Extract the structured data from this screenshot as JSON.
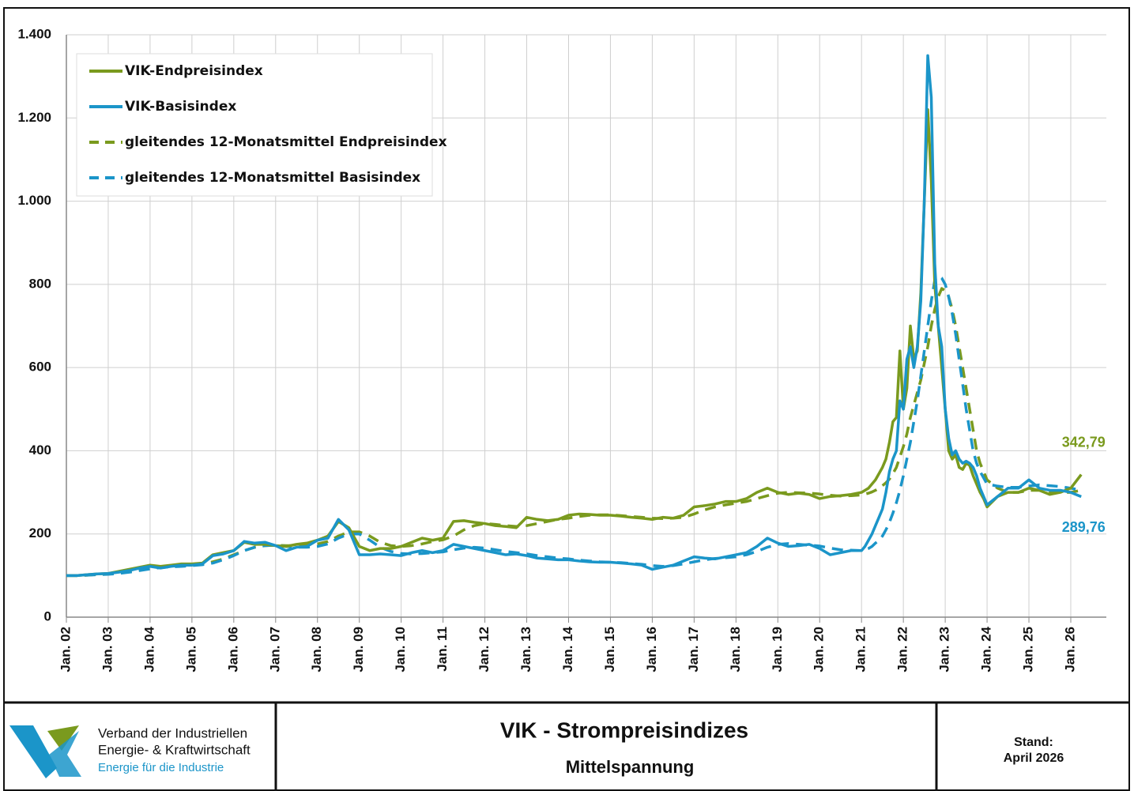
{
  "chart_data": {
    "type": "line",
    "title": "VIK - Strompreisindizes",
    "subtitle": "Mittelspannung",
    "organization": [
      "Verband der Industriellen",
      "Energie- & Kraftwirtschaft",
      "Energie für die Industrie"
    ],
    "stand_label": "Stand:",
    "stand_date": "April 2026",
    "xlim": [
      2002,
      2026.85
    ],
    "ylim": [
      0,
      1400
    ],
    "yticks": [
      0,
      200,
      400,
      600,
      800,
      {
        "value": 1000,
        "label": "1.000"
      },
      {
        "value": 1200,
        "label": "1.200"
      },
      {
        "value": 1400,
        "label": "1.400"
      }
    ],
    "xticks": [
      {
        "value": 2002,
        "label": "Jan. 02"
      },
      {
        "value": 2003,
        "label": "Jan. 03"
      },
      {
        "value": 2004,
        "label": "Jan. 04"
      },
      {
        "value": 2005,
        "label": "Jan. 05"
      },
      {
        "value": 2006,
        "label": "Jan. 06"
      },
      {
        "value": 2007,
        "label": "Jan. 07"
      },
      {
        "value": 2008,
        "label": "Jan. 08"
      },
      {
        "value": 2009,
        "label": "Jan. 09"
      },
      {
        "value": 2010,
        "label": "Jan. 10"
      },
      {
        "value": 2011,
        "label": "Jan. 11"
      },
      {
        "value": 2012,
        "label": "Jan. 12"
      },
      {
        "value": 2013,
        "label": "Jan. 13"
      },
      {
        "value": 2014,
        "label": "Jan. 14"
      },
      {
        "value": 2015,
        "label": "Jan. 15"
      },
      {
        "value": 2016,
        "label": "Jan. 16"
      },
      {
        "value": 2017,
        "label": "Jan. 17"
      },
      {
        "value": 2018,
        "label": "Jan. 18"
      },
      {
        "value": 2019,
        "label": "Jan. 19"
      },
      {
        "value": 2020,
        "label": "Jan. 20"
      },
      {
        "value": 2021,
        "label": "Jan. 21"
      },
      {
        "value": 2022,
        "label": "Jan. 22"
      },
      {
        "value": 2023,
        "label": "Jan. 23"
      },
      {
        "value": 2024,
        "label": "Jan. 24"
      },
      {
        "value": 2025,
        "label": "Jan. 25"
      },
      {
        "value": 2026,
        "label": "Jan. 26"
      }
    ],
    "grid": true,
    "legend": "upper left",
    "x": [
      2002,
      2002.25,
      2002.5,
      2002.75,
      2003,
      2003.25,
      2003.5,
      2003.75,
      2004,
      2004.25,
      2004.5,
      2004.75,
      2005,
      2005.25,
      2005.5,
      2005.75,
      2006,
      2006.25,
      2006.5,
      2006.75,
      2007,
      2007.25,
      2007.5,
      2007.75,
      2008,
      2008.25,
      2008.5,
      2008.75,
      2009,
      2009.25,
      2009.5,
      2009.75,
      2010,
      2010.25,
      2010.5,
      2010.75,
      2011,
      2011.25,
      2011.5,
      2011.75,
      2012,
      2012.25,
      2012.5,
      2012.75,
      2013,
      2013.25,
      2013.5,
      2013.75,
      2014,
      2014.25,
      2014.5,
      2014.75,
      2015,
      2015.25,
      2015.5,
      2015.75,
      2016,
      2016.25,
      2016.5,
      2016.75,
      2017,
      2017.25,
      2017.5,
      2017.75,
      2018,
      2018.25,
      2018.5,
      2018.75,
      2019,
      2019.25,
      2019.5,
      2019.75,
      2020,
      2020.25,
      2020.5,
      2020.75,
      2021,
      2021.083,
      2021.167,
      2021.25,
      2021.333,
      2021.417,
      2021.5,
      2021.583,
      2021.667,
      2021.75,
      2021.833,
      2021.917,
      2022,
      2022.083,
      2022.167,
      2022.25,
      2022.333,
      2022.417,
      2022.5,
      2022.583,
      2022.667,
      2022.75,
      2022.833,
      2022.917,
      2023,
      2023.083,
      2023.167,
      2023.25,
      2023.333,
      2023.417,
      2023.5,
      2023.583,
      2023.667,
      2023.75,
      2023.833,
      2023.917,
      2024,
      2024.25,
      2024.5,
      2024.75,
      2025,
      2025.25,
      2025.5,
      2025.75,
      2026,
      2026.25
    ],
    "series": [
      {
        "name": "VIK-Endpreisindex",
        "color": "#7a9a1e",
        "dash": false,
        "values": [
          100,
          100,
          102,
          104,
          105,
          110,
          115,
          120,
          125,
          122,
          125,
          128,
          128,
          130,
          150,
          155,
          160,
          180,
          175,
          175,
          172,
          170,
          175,
          178,
          185,
          195,
          230,
          215,
          170,
          160,
          165,
          165,
          170,
          180,
          190,
          185,
          190,
          230,
          232,
          228,
          225,
          220,
          218,
          215,
          240,
          235,
          232,
          235,
          245,
          248,
          247,
          245,
          245,
          243,
          240,
          238,
          235,
          240,
          238,
          245,
          265,
          268,
          272,
          278,
          278,
          285,
          300,
          310,
          300,
          295,
          298,
          295,
          285,
          290,
          292,
          295,
          300,
          305,
          310,
          320,
          330,
          345,
          360,
          380,
          420,
          470,
          480,
          640,
          500,
          550,
          700,
          620,
          640,
          780,
          1000,
          1220,
          1050,
          800,
          700,
          600,
          500,
          400,
          380,
          390,
          360,
          355,
          370,
          365,
          340,
          320,
          300,
          285,
          265,
          290,
          300,
          300,
          310,
          305,
          295,
          300,
          310,
          342.79
        ],
        "value_labels": [
          null,
          null,
          null,
          null,
          null,
          null,
          null,
          null,
          null,
          null,
          null,
          null,
          null,
          null,
          null,
          null,
          null,
          null,
          null,
          null,
          null,
          null,
          null,
          null,
          null,
          null,
          null,
          null,
          null,
          null,
          null,
          null,
          null,
          null,
          null,
          null,
          null,
          null,
          null,
          null,
          null,
          null,
          null,
          null,
          null,
          null,
          null,
          null,
          null,
          null,
          null,
          null,
          null,
          null,
          null,
          null,
          null,
          null,
          null,
          null,
          null,
          null,
          null,
          null,
          null,
          null,
          null,
          null,
          null,
          null,
          null,
          null,
          null,
          null,
          null,
          null,
          null,
          null,
          null,
          null,
          null,
          null,
          null,
          null,
          null,
          null,
          null,
          null,
          null,
          null,
          null,
          null,
          null,
          null,
          null,
          null,
          null,
          null,
          null,
          null,
          null,
          null,
          null,
          null,
          null,
          null,
          null,
          null,
          null,
          null,
          null,
          null,
          null,
          null,
          null,
          null,
          null,
          null,
          null,
          null,
          null,
          "342,79"
        ]
      },
      {
        "name": "VIK-Basisindex",
        "color": "#1b95c9",
        "dash": false,
        "values": [
          100,
          100,
          102,
          104,
          105,
          108,
          112,
          118,
          122,
          118,
          122,
          125,
          125,
          128,
          148,
          152,
          160,
          182,
          178,
          180,
          172,
          160,
          168,
          170,
          185,
          190,
          235,
          210,
          150,
          150,
          152,
          150,
          148,
          155,
          160,
          155,
          160,
          175,
          170,
          165,
          160,
          155,
          150,
          152,
          148,
          142,
          140,
          138,
          138,
          135,
          133,
          132,
          132,
          130,
          128,
          125,
          115,
          120,
          125,
          135,
          145,
          142,
          140,
          145,
          150,
          155,
          170,
          190,
          178,
          170,
          172,
          175,
          165,
          150,
          155,
          160,
          160,
          170,
          185,
          200,
          220,
          240,
          260,
          300,
          350,
          380,
          400,
          520,
          500,
          620,
          650,
          600,
          650,
          760,
          1000,
          1350,
          1250,
          850,
          700,
          650,
          500,
          430,
          390,
          400,
          380,
          370,
          375,
          370,
          360,
          340,
          310,
          290,
          270,
          290,
          310,
          310,
          330,
          310,
          305,
          305,
          300,
          289.76
        ],
        "value_labels": [
          null,
          null,
          null,
          null,
          null,
          null,
          null,
          null,
          null,
          null,
          null,
          null,
          null,
          null,
          null,
          null,
          null,
          null,
          null,
          null,
          null,
          null,
          null,
          null,
          null,
          null,
          null,
          null,
          null,
          null,
          null,
          null,
          null,
          null,
          null,
          null,
          null,
          null,
          null,
          null,
          null,
          null,
          null,
          null,
          null,
          null,
          null,
          null,
          null,
          null,
          null,
          null,
          null,
          null,
          null,
          null,
          null,
          null,
          null,
          null,
          null,
          null,
          null,
          null,
          null,
          null,
          null,
          null,
          null,
          null,
          null,
          null,
          null,
          null,
          null,
          null,
          null,
          null,
          null,
          null,
          null,
          null,
          null,
          null,
          null,
          null,
          null,
          null,
          null,
          null,
          null,
          null,
          null,
          null,
          null,
          null,
          null,
          null,
          null,
          null,
          null,
          null,
          null,
          null,
          null,
          null,
          null,
          null,
          null,
          null,
          null,
          null,
          null,
          null,
          null,
          null,
          null,
          null,
          null,
          null,
          null,
          "289,76"
        ]
      },
      {
        "name": "gleitendes 12-Monatsmittel Endpreisindex",
        "color": "#7a9a1e",
        "dash": true,
        "values": [
          100,
          100,
          101,
          103,
          104,
          106,
          110,
          114,
          118,
          121,
          123,
          124,
          126,
          128,
          133,
          140,
          150,
          160,
          168,
          172,
          173,
          172,
          172,
          174,
          176,
          182,
          195,
          205,
          205,
          195,
          180,
          172,
          170,
          172,
          176,
          182,
          186,
          195,
          210,
          220,
          225,
          223,
          220,
          218,
          220,
          225,
          230,
          235,
          238,
          242,
          245,
          246,
          246,
          244,
          242,
          240,
          238,
          237,
          238,
          240,
          248,
          258,
          265,
          270,
          274,
          278,
          285,
          292,
          298,
          300,
          299,
          298,
          296,
          293,
          291,
          292,
          294,
          296,
          298,
          301,
          305,
          310,
          316,
          323,
          332,
          345,
          360,
          385,
          410,
          440,
          480,
          510,
          540,
          570,
          610,
          650,
          700,
          740,
          770,
          790,
          785,
          770,
          740,
          700,
          650,
          600,
          550,
          500,
          450,
          400,
          370,
          350,
          330,
          310,
          300,
          300,
          305,
          305,
          300,
          300,
          300,
          305
        ]
      },
      {
        "name": "gleitendes 12-Monatsmittel Basisindex",
        "color": "#1b95c9",
        "dash": true,
        "values": [
          100,
          100,
          101,
          102,
          103,
          105,
          108,
          112,
          116,
          119,
          121,
          122,
          124,
          126,
          130,
          138,
          148,
          160,
          168,
          172,
          173,
          170,
          168,
          168,
          170,
          176,
          190,
          200,
          200,
          185,
          168,
          158,
          153,
          152,
          153,
          155,
          157,
          162,
          166,
          168,
          166,
          162,
          158,
          155,
          152,
          148,
          145,
          142,
          140,
          137,
          135,
          133,
          132,
          131,
          129,
          127,
          124,
          122,
          124,
          128,
          133,
          138,
          141,
          143,
          145,
          150,
          158,
          168,
          175,
          177,
          175,
          173,
          171,
          166,
          162,
          161,
          160,
          162,
          165,
          170,
          178,
          185,
          195,
          210,
          228,
          250,
          275,
          305,
          340,
          380,
          420,
          470,
          520,
          580,
          640,
          700,
          760,
          810,
          820,
          815,
          800,
          770,
          730,
          680,
          620,
          560,
          500,
          450,
          400,
          370,
          350,
          335,
          320,
          315,
          312,
          312,
          315,
          318,
          316,
          314,
          310,
          305
        ]
      }
    ]
  }
}
